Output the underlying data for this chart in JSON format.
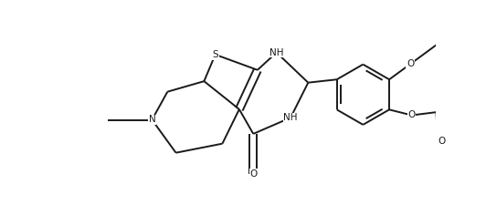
{
  "background_color": "#ffffff",
  "line_color": "#1a1a1a",
  "line_width": 1.4,
  "font_size": 7.5,
  "figsize": [
    5.32,
    2.36
  ],
  "dpi": 100,
  "xlim": [
    0,
    5.32
  ],
  "ylim": [
    0,
    2.36
  ]
}
